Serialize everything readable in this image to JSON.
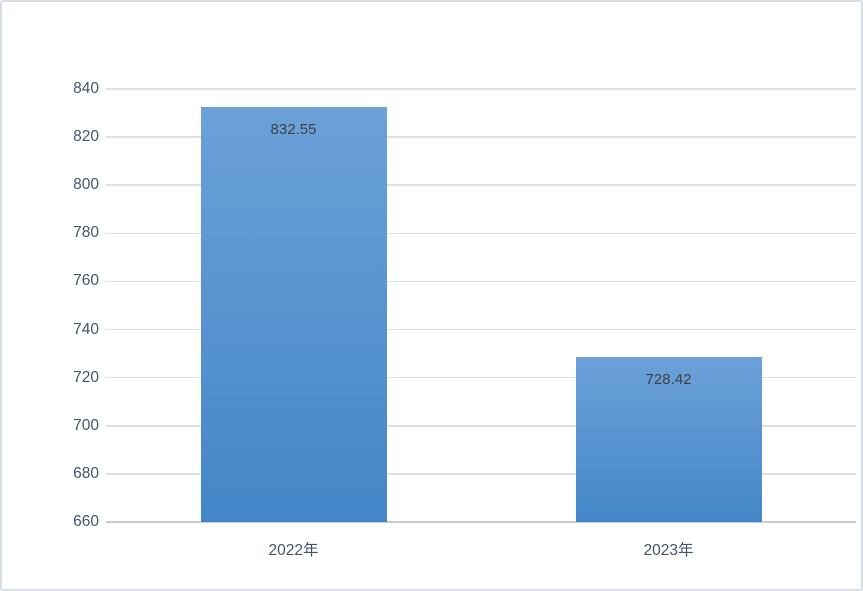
{
  "chart_data": {
    "type": "bar",
    "categories": [
      "2022年",
      "2023年"
    ],
    "values": [
      832.55,
      728.42
    ],
    "data_labels": [
      "832.55",
      "728.42"
    ],
    "title": "",
    "xlabel": "",
    "ylabel": "",
    "ylim": [
      660,
      840
    ],
    "yticks": [
      660,
      680,
      700,
      720,
      740,
      760,
      780,
      800,
      820,
      840
    ],
    "grid": true,
    "legend": false,
    "colors": {
      "bar_gradient_top": "#6CA1D9",
      "bar_gradient_bottom": "#4386C7",
      "value_label": "#404040",
      "axis_text": "#44546A",
      "gridline": "#DCE1E8",
      "axis_line": "#C7CBD3",
      "background": "#FFFFFF",
      "border": "#D9DDE4"
    }
  }
}
